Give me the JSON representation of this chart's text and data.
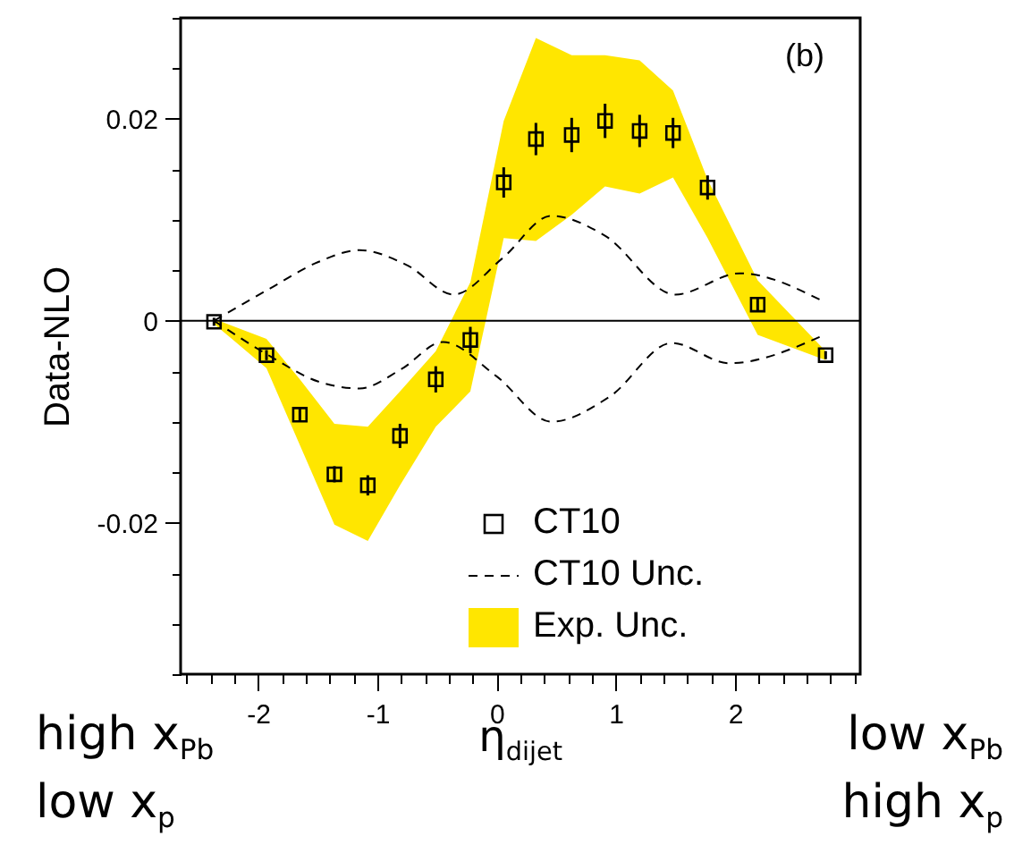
{
  "chart_data": {
    "type": "scatter",
    "xlabel": "η$_{dijet}$",
    "ylabel": "Data-NLO",
    "annotations": [
      "(b)",
      "high x$_{Pb}$",
      "low x$_{p}$",
      "low x$_{Pb}$",
      "high x$_{p}$"
    ],
    "xlim": [
      -2.65,
      3.05
    ],
    "xticks": [
      {
        "value": -2.6,
        "label": null
      },
      {
        "value": -2.4,
        "label": null
      },
      {
        "value": -2.2,
        "label": null
      },
      -2,
      {
        "value": -1.8,
        "label": null
      },
      {
        "value": -1.6,
        "label": null
      },
      {
        "value": -1.4,
        "label": null
      },
      {
        "value": -1.2,
        "label": null
      },
      -1,
      {
        "value": -0.8,
        "label": null
      },
      {
        "value": -0.6,
        "label": null
      },
      {
        "value": -0.4,
        "label": null
      },
      {
        "value": -0.2,
        "label": null
      },
      0,
      {
        "value": 0.2,
        "label": null
      },
      {
        "value": 0.4,
        "label": null
      },
      {
        "value": 0.6,
        "label": null
      },
      {
        "value": 0.8,
        "label": null
      },
      1,
      {
        "value": 1.2,
        "label": null
      },
      {
        "value": 1.4,
        "label": null
      },
      {
        "value": 1.6,
        "label": null
      },
      {
        "value": 1.8,
        "label": null
      },
      2,
      {
        "value": 2.2,
        "label": null
      },
      {
        "value": 2.4,
        "label": null
      },
      {
        "value": 2.6,
        "label": null
      },
      {
        "value": 2.8,
        "label": null
      },
      {
        "value": 3.0,
        "label": null
      }
    ],
    "ylim": [
      -0.035,
      0.03
    ],
    "yticks": [
      {
        "value": -0.035,
        "label": null
      },
      {
        "value": -0.03,
        "label": null
      },
      {
        "value": -0.025,
        "label": null
      },
      -0.02,
      {
        "value": -0.015,
        "label": null
      },
      {
        "value": -0.01,
        "label": null
      },
      {
        "value": -0.005,
        "label": null
      },
      0,
      {
        "value": 0.005,
        "label": null
      },
      {
        "value": 0.01,
        "label": null
      },
      {
        "value": 0.015,
        "label": null
      },
      0.02,
      {
        "value": 0.025,
        "label": null
      },
      {
        "value": 0.03,
        "label": null
      }
    ],
    "grid": false,
    "legend": "bottom right",
    "marker": "square",
    "ref_lines": [
      {
        "axis": "y",
        "value": 0,
        "color": "#000000"
      }
    ],
    "series": [
      {
        "name": "Exp. Unc.",
        "type": "area",
        "color": "#ffe600",
        "marker": "none",
        "x": [
          -2.37,
          -1.93,
          -1.65,
          -1.36,
          -1.08,
          -0.81,
          -0.51,
          -0.22,
          0.06,
          0.33,
          0.63,
          0.91,
          1.2,
          1.48,
          1.77,
          2.19,
          2.76,
          2.76,
          2.19,
          1.77,
          1.48,
          1.2,
          0.91,
          0.63,
          0.33,
          0.06,
          -0.22,
          -0.51,
          -0.81,
          -1.08,
          -1.36,
          -1.65,
          -1.93,
          -2.37
        ],
        "values": [
          0.0002,
          -0.0018,
          -0.0058,
          -0.0102,
          -0.0105,
          -0.007,
          -0.003,
          0.0038,
          0.0198,
          0.028,
          0.0263,
          0.0263,
          0.0258,
          0.0228,
          0.014,
          0.004,
          -0.003,
          -0.0039,
          -0.0014,
          0.0082,
          0.0142,
          0.0126,
          0.0133,
          0.0105,
          0.0079,
          0.0082,
          -0.007,
          -0.0105,
          -0.0163,
          -0.0218,
          -0.0202,
          -0.0123,
          -0.0047,
          -0.0003
        ]
      },
      {
        "name": "CT10 Unc.",
        "type": "line",
        "color": "#000000",
        "line_style": "dashed",
        "marker": "none",
        "x": [
          -2.37,
          -1.9,
          -1.5,
          -1.15,
          -0.75,
          -0.36,
          0.05,
          0.46,
          0.9,
          1.5,
          2.04,
          2.71
        ],
        "values": [
          0,
          0.0032,
          0.0058,
          0.007,
          0.0055,
          0.0026,
          0.0062,
          0.0104,
          0.0085,
          0.0026,
          0.0047,
          0.0021
        ]
      },
      {
        "type": "line",
        "color": "#000000",
        "line_style": "dashed",
        "marker": "none",
        "x": [
          -2.37,
          -1.9,
          -1.5,
          -1.15,
          -0.8,
          -0.45,
          0,
          0.46,
          0.95,
          1.47,
          1.95,
          2.71
        ],
        "values": [
          0,
          -0.0035,
          -0.006,
          -0.0067,
          -0.0048,
          -0.0021,
          -0.0055,
          -0.01,
          -0.0075,
          -0.0022,
          -0.0042,
          -0.0016
        ]
      },
      {
        "name": "CT10",
        "type": "scatter",
        "color": "#000000",
        "x": [
          -2.37,
          -1.93,
          -1.65,
          -1.36,
          -1.08,
          -0.81,
          -0.51,
          -0.22,
          0.06,
          0.33,
          0.63,
          0.91,
          1.2,
          1.48,
          1.77,
          2.19,
          2.76
        ],
        "values": [
          -0.0001,
          -0.0034,
          -0.0093,
          -0.0152,
          -0.0163,
          -0.0114,
          -0.0058,
          -0.0019,
          0.0137,
          0.018,
          0.0184,
          0.0198,
          0.0188,
          0.0186,
          0.0132,
          0.0016,
          -0.0034
        ],
        "errors": [
          0.0004,
          0.0005,
          0.0006,
          0.0008,
          0.001,
          0.0012,
          0.0013,
          0.0013,
          0.0015,
          0.0016,
          0.0017,
          0.0017,
          0.0016,
          0.0015,
          0.0012,
          0.0006,
          0.0004
        ]
      }
    ]
  }
}
